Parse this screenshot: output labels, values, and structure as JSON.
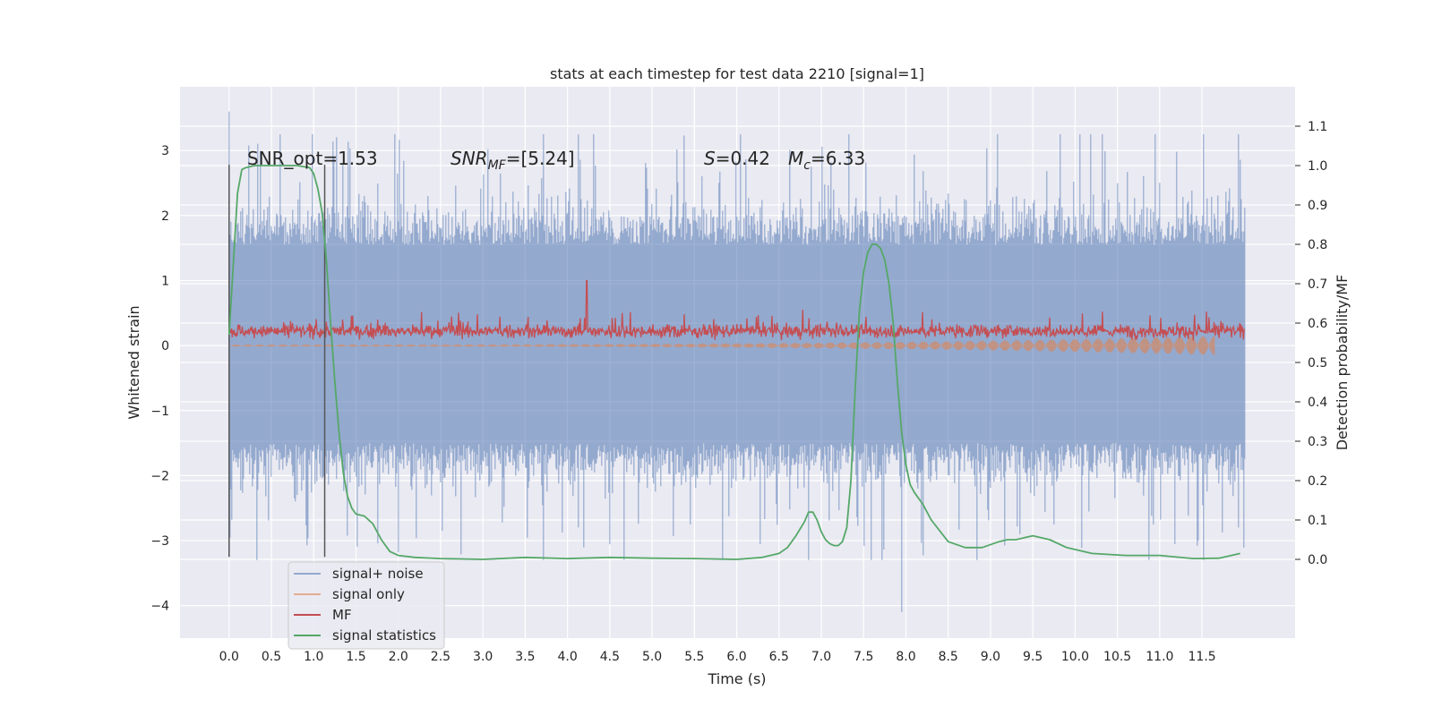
{
  "chart_data": {
    "type": "line",
    "title": "stats at each timestep for test data 2210 [signal=1]",
    "xlabel": "Time (s)",
    "ylabel_left": "Whitened strain",
    "ylabel_right": "Detection probability/MF",
    "xlim": [
      -0.58,
      12.6
    ],
    "ylim_left": [
      -4.5,
      3.98
    ],
    "ylim_right": [
      -0.2,
      1.2
    ],
    "xticks": [
      "0.0",
      "0.5",
      "1.0",
      "1.5",
      "2.0",
      "2.5",
      "3.0",
      "3.5",
      "4.0",
      "4.5",
      "5.0",
      "5.5",
      "6.0",
      "6.5",
      "7.0",
      "7.5",
      "8.0",
      "8.5",
      "9.0",
      "9.5",
      "10.0",
      "10.5",
      "11.0",
      "11.5"
    ],
    "yticks_left": [
      "3",
      "2",
      "1",
      "0",
      "−1",
      "−2",
      "−3",
      "−4"
    ],
    "yticks_left_values": [
      3,
      2,
      1,
      0,
      -1,
      -2,
      -3,
      -4
    ],
    "yticks_right": [
      "1.1",
      "1.0",
      "0.9",
      "0.8",
      "0.7",
      "0.6",
      "0.5",
      "0.4",
      "0.3",
      "0.2",
      "0.1",
      "0.0"
    ],
    "yticks_right_values": [
      1.1,
      1.0,
      0.9,
      0.8,
      0.7,
      0.6,
      0.5,
      0.4,
      0.3,
      0.2,
      0.1,
      0.0
    ],
    "grid": true,
    "legend_position": "bottom-left",
    "annotations": {
      "snr_opt": "SNR_opt=1.53",
      "snr_mf_base": "SNR",
      "snr_mf_sub": "MF",
      "snr_mf_value": "=[5.24]",
      "s_sym": "S",
      "s_value": "=0.42",
      "mc_sym": "M",
      "mc_sub": "c",
      "mc_value": "=6.33"
    },
    "vlines_x": [
      0.0,
      1.13
    ],
    "series": [
      {
        "name": "signal+ noise",
        "color": "#4c72b0",
        "axis": "left",
        "x_range": [
          0.0,
          12.0
        ],
        "typical_envelope": [
          -1.5,
          1.55
        ],
        "max": 3.6,
        "min": -4.1
      },
      {
        "name": "signal only",
        "color": "#dd8452",
        "axis": "left",
        "x_range": [
          0.0,
          11.65
        ],
        "note_values": "near zero, slowly growing amplitude (about ±0.15) toward the end"
      },
      {
        "name": "MF",
        "color": "#c44e52",
        "axis": "left",
        "x_range": [
          0.0,
          12.0
        ],
        "typical_range": [
          0.05,
          0.4
        ],
        "max": 1.0,
        "max_x": 4.23
      },
      {
        "name": "signal statistics",
        "color": "#55a868",
        "axis": "right",
        "x": [
          0.0,
          0.05,
          0.1,
          0.15,
          0.2,
          0.3,
          0.5,
          0.8,
          0.95,
          1.0,
          1.05,
          1.1,
          1.15,
          1.2,
          1.25,
          1.3,
          1.35,
          1.4,
          1.45,
          1.5,
          1.6,
          1.7,
          1.8,
          1.9,
          2.0,
          2.2,
          2.5,
          3.0,
          3.5,
          4.0,
          4.5,
          5.0,
          5.5,
          6.0,
          6.3,
          6.5,
          6.6,
          6.7,
          6.8,
          6.85,
          6.9,
          6.95,
          7.0,
          7.05,
          7.1,
          7.15,
          7.2,
          7.25,
          7.3,
          7.35,
          7.4,
          7.45,
          7.5,
          7.55,
          7.6,
          7.65,
          7.7,
          7.75,
          7.8,
          7.85,
          7.9,
          7.95,
          8.0,
          8.05,
          8.1,
          8.2,
          8.3,
          8.5,
          8.7,
          8.9,
          9.1,
          9.2,
          9.3,
          9.5,
          9.7,
          9.9,
          10.2,
          10.6,
          11.0,
          11.4,
          11.7,
          11.95
        ],
        "y": [
          0.57,
          0.75,
          0.93,
          0.99,
          0.995,
          1.0,
          1.0,
          1.0,
          0.995,
          0.98,
          0.94,
          0.88,
          0.76,
          0.6,
          0.45,
          0.32,
          0.22,
          0.16,
          0.13,
          0.115,
          0.11,
          0.09,
          0.05,
          0.02,
          0.01,
          0.005,
          0.002,
          0.0,
          0.005,
          0.002,
          0.005,
          0.003,
          0.002,
          0.0,
          0.005,
          0.015,
          0.03,
          0.06,
          0.095,
          0.12,
          0.12,
          0.1,
          0.07,
          0.05,
          0.04,
          0.035,
          0.035,
          0.045,
          0.08,
          0.2,
          0.43,
          0.63,
          0.73,
          0.78,
          0.8,
          0.8,
          0.79,
          0.76,
          0.7,
          0.6,
          0.45,
          0.32,
          0.24,
          0.19,
          0.17,
          0.14,
          0.1,
          0.045,
          0.03,
          0.03,
          0.045,
          0.05,
          0.05,
          0.06,
          0.05,
          0.03,
          0.015,
          0.01,
          0.01,
          0.002,
          0.003,
          0.015
        ]
      }
    ]
  }
}
